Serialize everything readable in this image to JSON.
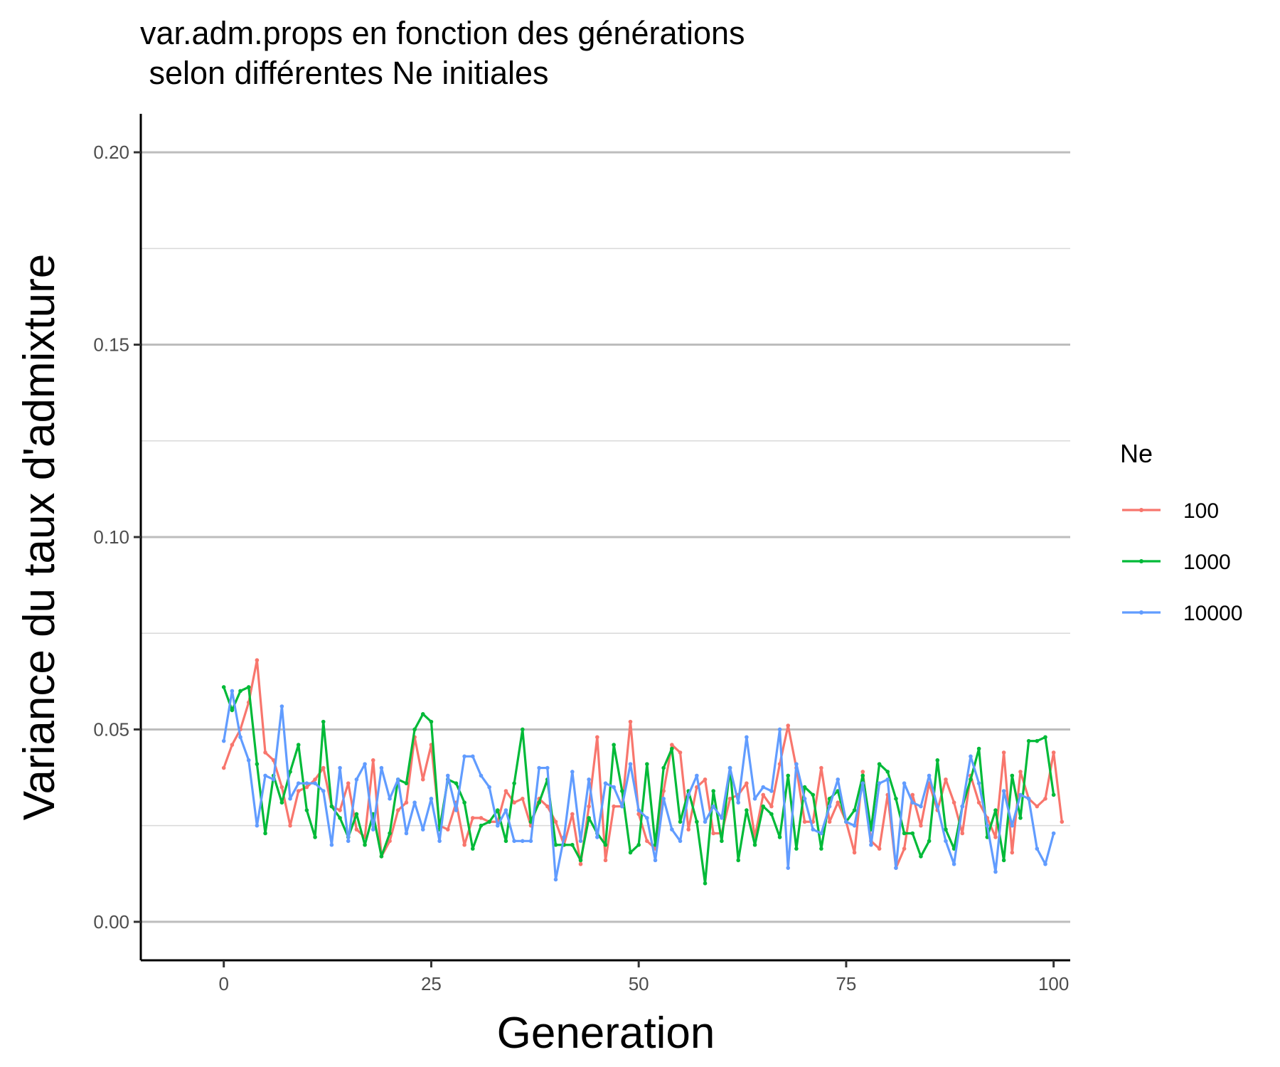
{
  "chart_data": {
    "type": "line",
    "title": "var.adm.props en fonction des générations",
    "subtitle": " selon différentes Ne initiales",
    "xlabel": "Generation",
    "ylabel": "Variance du taux d'admixture",
    "xlim": [
      -10,
      102
    ],
    "ylim": [
      -0.01,
      0.21
    ],
    "x_ticks": [
      0,
      25,
      50,
      75,
      100
    ],
    "x_tick_labels": [
      "0",
      "25",
      "50",
      "75",
      "100"
    ],
    "y_ticks": [
      0,
      0.05,
      0.1,
      0.15,
      0.2
    ],
    "y_tick_labels": [
      "0.00",
      "0.05",
      "0.10",
      "0.15",
      "0.20"
    ],
    "y_minor_ticks": [
      0.025,
      0.075,
      0.125,
      0.175
    ],
    "grid": "horizontal",
    "legend_title": "Ne",
    "legend_position": "right",
    "series": [
      {
        "name": "100",
        "color": "#F8766D",
        "values": [
          0.04,
          0.046,
          0.05,
          0.057,
          0.068,
          0.044,
          0.042,
          0.035,
          0.025,
          0.034,
          0.035,
          0.037,
          0.04,
          0.03,
          0.029,
          0.036,
          0.024,
          0.022,
          0.042,
          0.017,
          0.021,
          0.029,
          0.031,
          0.048,
          0.037,
          0.046,
          0.025,
          0.024,
          0.031,
          0.02,
          0.027,
          0.027,
          0.026,
          0.026,
          0.034,
          0.031,
          0.032,
          0.025,
          0.032,
          0.03,
          0.026,
          0.02,
          0.028,
          0.015,
          0.03,
          0.048,
          0.016,
          0.03,
          0.03,
          0.052,
          0.028,
          0.021,
          0.019,
          0.034,
          0.046,
          0.044,
          0.024,
          0.035,
          0.037,
          0.023,
          0.023,
          0.032,
          0.033,
          0.036,
          0.022,
          0.033,
          0.03,
          0.041,
          0.051,
          0.04,
          0.026,
          0.026,
          0.04,
          0.026,
          0.031,
          0.026,
          0.018,
          0.039,
          0.021,
          0.019,
          0.033,
          0.014,
          0.019,
          0.033,
          0.025,
          0.036,
          0.029,
          0.037,
          0.031,
          0.023,
          0.038,
          0.031,
          0.027,
          0.022,
          0.044,
          0.018,
          0.039,
          0.032,
          0.03,
          0.032,
          0.044,
          0.026
        ]
      },
      {
        "name": "1000",
        "color": "#00BA38",
        "values": [
          0.061,
          0.055,
          0.06,
          0.061,
          0.041,
          0.023,
          0.038,
          0.031,
          0.039,
          0.046,
          0.029,
          0.022,
          0.052,
          0.03,
          0.027,
          0.022,
          0.028,
          0.02,
          0.028,
          0.017,
          0.023,
          0.037,
          0.036,
          0.05,
          0.054,
          0.052,
          0.024,
          0.037,
          0.036,
          0.031,
          0.019,
          0.025,
          0.026,
          0.029,
          0.021,
          0.036,
          0.05,
          0.026,
          0.031,
          0.037,
          0.02,
          0.02,
          0.02,
          0.016,
          0.027,
          0.023,
          0.02,
          0.046,
          0.034,
          0.018,
          0.02,
          0.041,
          0.02,
          0.04,
          0.045,
          0.026,
          0.034,
          0.026,
          0.01,
          0.034,
          0.021,
          0.04,
          0.016,
          0.029,
          0.02,
          0.03,
          0.028,
          0.022,
          0.038,
          0.019,
          0.035,
          0.033,
          0.019,
          0.032,
          0.034,
          0.026,
          0.029,
          0.038,
          0.024,
          0.041,
          0.039,
          0.032,
          0.023,
          0.023,
          0.017,
          0.021,
          0.042,
          0.024,
          0.019,
          0.03,
          0.037,
          0.045,
          0.022,
          0.029,
          0.016,
          0.038,
          0.027,
          0.047,
          0.047,
          0.048,
          0.033
        ]
      },
      {
        "name": "10000",
        "color": "#619CFF",
        "values": [
          0.047,
          0.06,
          0.048,
          0.042,
          0.025,
          0.038,
          0.037,
          0.056,
          0.032,
          0.036,
          0.036,
          0.036,
          0.034,
          0.02,
          0.04,
          0.021,
          0.037,
          0.041,
          0.024,
          0.04,
          0.032,
          0.037,
          0.023,
          0.031,
          0.024,
          0.032,
          0.021,
          0.038,
          0.029,
          0.043,
          0.043,
          0.038,
          0.035,
          0.025,
          0.029,
          0.021,
          0.021,
          0.021,
          0.04,
          0.04,
          0.011,
          0.022,
          0.039,
          0.021,
          0.037,
          0.022,
          0.036,
          0.035,
          0.03,
          0.041,
          0.029,
          0.027,
          0.016,
          0.032,
          0.024,
          0.021,
          0.033,
          0.038,
          0.026,
          0.03,
          0.027,
          0.04,
          0.031,
          0.048,
          0.032,
          0.035,
          0.034,
          0.05,
          0.014,
          0.041,
          0.032,
          0.024,
          0.023,
          0.03,
          0.037,
          0.026,
          0.025,
          0.036,
          0.02,
          0.036,
          0.037,
          0.014,
          0.036,
          0.031,
          0.03,
          0.038,
          0.03,
          0.021,
          0.015,
          0.03,
          0.043,
          0.036,
          0.025,
          0.013,
          0.034,
          0.025,
          0.033,
          0.032,
          0.019,
          0.015,
          0.023
        ]
      }
    ]
  }
}
